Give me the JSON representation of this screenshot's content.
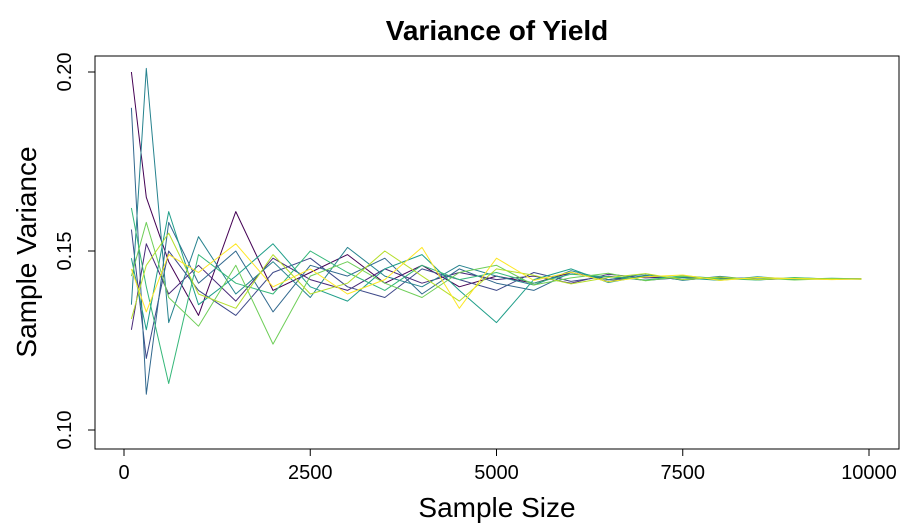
{
  "chart_data": {
    "type": "line",
    "title": "Variance of Yield",
    "xlabel": "Sample Size",
    "ylabel": "Sample Variance",
    "xlim": [
      0,
      10000
    ],
    "ylim": [
      0.1,
      0.2
    ],
    "xticks": [
      0,
      2500,
      5000,
      7500,
      10000
    ],
    "xtick_labels": [
      "0",
      "2500",
      "5000",
      "7500",
      "10000"
    ],
    "yticks": [
      0.1,
      0.15,
      0.2
    ],
    "ytick_labels": [
      "0.10",
      "0.15",
      "0.20"
    ],
    "grid": false,
    "legend": "none",
    "x": [
      100,
      300,
      600,
      1000,
      1500,
      2000,
      2500,
      3000,
      3500,
      4000,
      4500,
      5000,
      5500,
      6000,
      6500,
      7000,
      7500,
      8000,
      8500,
      9000,
      9500,
      9900
    ],
    "series": [
      {
        "color": "#440154",
        "values": [
          0.2,
          0.165,
          0.147,
          0.132,
          0.161,
          0.139,
          0.144,
          0.149,
          0.141,
          0.146,
          0.14,
          0.143,
          0.141,
          0.144,
          0.142,
          0.143,
          0.142,
          0.1425,
          0.142,
          0.1423,
          0.1421,
          0.1422
        ]
      },
      {
        "color": "#482878",
        "values": [
          0.128,
          0.152,
          0.138,
          0.146,
          0.136,
          0.148,
          0.142,
          0.139,
          0.145,
          0.141,
          0.144,
          0.142,
          0.143,
          0.141,
          0.1435,
          0.1425,
          0.1428,
          0.1422,
          0.1426,
          0.1421,
          0.1423,
          0.1422
        ]
      },
      {
        "color": "#3e4989",
        "values": [
          0.156,
          0.12,
          0.15,
          0.139,
          0.132,
          0.144,
          0.148,
          0.14,
          0.137,
          0.145,
          0.142,
          0.139,
          0.144,
          0.1415,
          0.143,
          0.1418,
          0.1426,
          0.1421,
          0.1424,
          0.1422,
          0.1421,
          0.1423
        ]
      },
      {
        "color": "#31688e",
        "values": [
          0.19,
          0.11,
          0.158,
          0.141,
          0.15,
          0.133,
          0.146,
          0.143,
          0.148,
          0.138,
          0.145,
          0.141,
          0.139,
          0.144,
          0.1415,
          0.1432,
          0.1419,
          0.1427,
          0.142,
          0.1424,
          0.1421,
          0.1422
        ]
      },
      {
        "color": "#26828e",
        "values": [
          0.135,
          0.201,
          0.13,
          0.154,
          0.138,
          0.147,
          0.137,
          0.151,
          0.143,
          0.14,
          0.146,
          0.143,
          0.1405,
          0.1445,
          0.142,
          0.1436,
          0.1418,
          0.1429,
          0.1419,
          0.1425,
          0.1422,
          0.1421
        ]
      },
      {
        "color": "#1f9e89",
        "values": [
          0.148,
          0.128,
          0.161,
          0.135,
          0.143,
          0.152,
          0.14,
          0.136,
          0.145,
          0.149,
          0.139,
          0.13,
          0.142,
          0.145,
          0.1412,
          0.1431,
          0.1425,
          0.1418,
          0.1428,
          0.1421,
          0.1424,
          0.1422
        ]
      },
      {
        "color": "#35b779",
        "values": [
          0.162,
          0.14,
          0.113,
          0.149,
          0.141,
          0.138,
          0.15,
          0.144,
          0.139,
          0.146,
          0.142,
          0.144,
          0.141,
          0.1435,
          0.1428,
          0.1419,
          0.1431,
          0.1423,
          0.1419,
          0.1426,
          0.1421,
          0.1423
        ]
      },
      {
        "color": "#6ece58",
        "values": [
          0.143,
          0.158,
          0.137,
          0.129,
          0.146,
          0.124,
          0.143,
          0.147,
          0.141,
          0.137,
          0.144,
          0.146,
          0.1405,
          0.1425,
          0.1438,
          0.1417,
          0.1429,
          0.1421,
          0.1425,
          0.1419,
          0.1423,
          0.1422
        ]
      },
      {
        "color": "#b5de2b",
        "values": [
          0.131,
          0.146,
          0.155,
          0.138,
          0.134,
          0.149,
          0.138,
          0.141,
          0.15,
          0.143,
          0.136,
          0.145,
          0.1432,
          0.1408,
          0.1426,
          0.1437,
          0.142,
          0.1427,
          0.142,
          0.1424,
          0.1422,
          0.1421
        ]
      },
      {
        "color": "#fde725",
        "values": [
          0.145,
          0.133,
          0.149,
          0.144,
          0.152,
          0.14,
          0.145,
          0.138,
          0.142,
          0.151,
          0.134,
          0.148,
          0.1418,
          0.1441,
          0.1414,
          0.1428,
          0.1433,
          0.1418,
          0.1426,
          0.1423,
          0.142,
          0.1422
        ]
      }
    ]
  }
}
